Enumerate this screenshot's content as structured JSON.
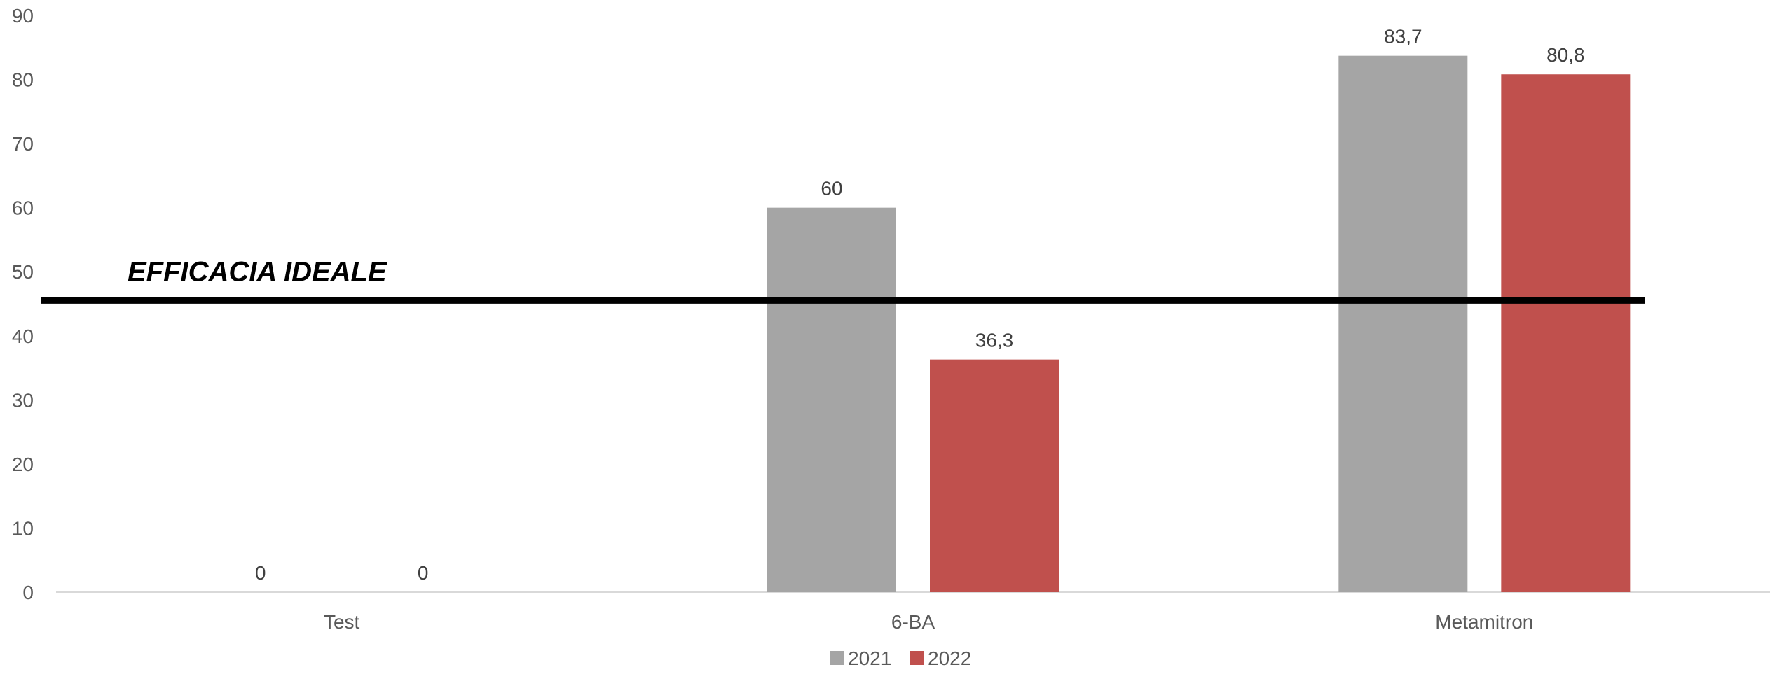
{
  "chart_data": {
    "type": "bar",
    "categories": [
      "Test",
      "6-BA",
      "Metamitron"
    ],
    "series": [
      {
        "name": "2021",
        "values": [
          0,
          60,
          83.7
        ],
        "labels": [
          "0",
          "60",
          "83,7"
        ],
        "color": "#A5A5A5"
      },
      {
        "name": "2022",
        "values": [
          0,
          36.3,
          80.8
        ],
        "labels": [
          "0",
          "36,3",
          "80,8"
        ],
        "color": "#C0504D"
      }
    ],
    "ylim": [
      0,
      90
    ],
    "yticks": [
      0,
      10,
      20,
      30,
      40,
      50,
      60,
      70,
      80,
      90
    ],
    "title": "",
    "xlabel": "",
    "ylabel": "",
    "grid": false,
    "legend": "bottom-center",
    "threshold": {
      "label": "EFFICACIA IDEALE",
      "value": 45.5,
      "color": "#000000"
    },
    "axis_color": "#D9D9D9"
  }
}
